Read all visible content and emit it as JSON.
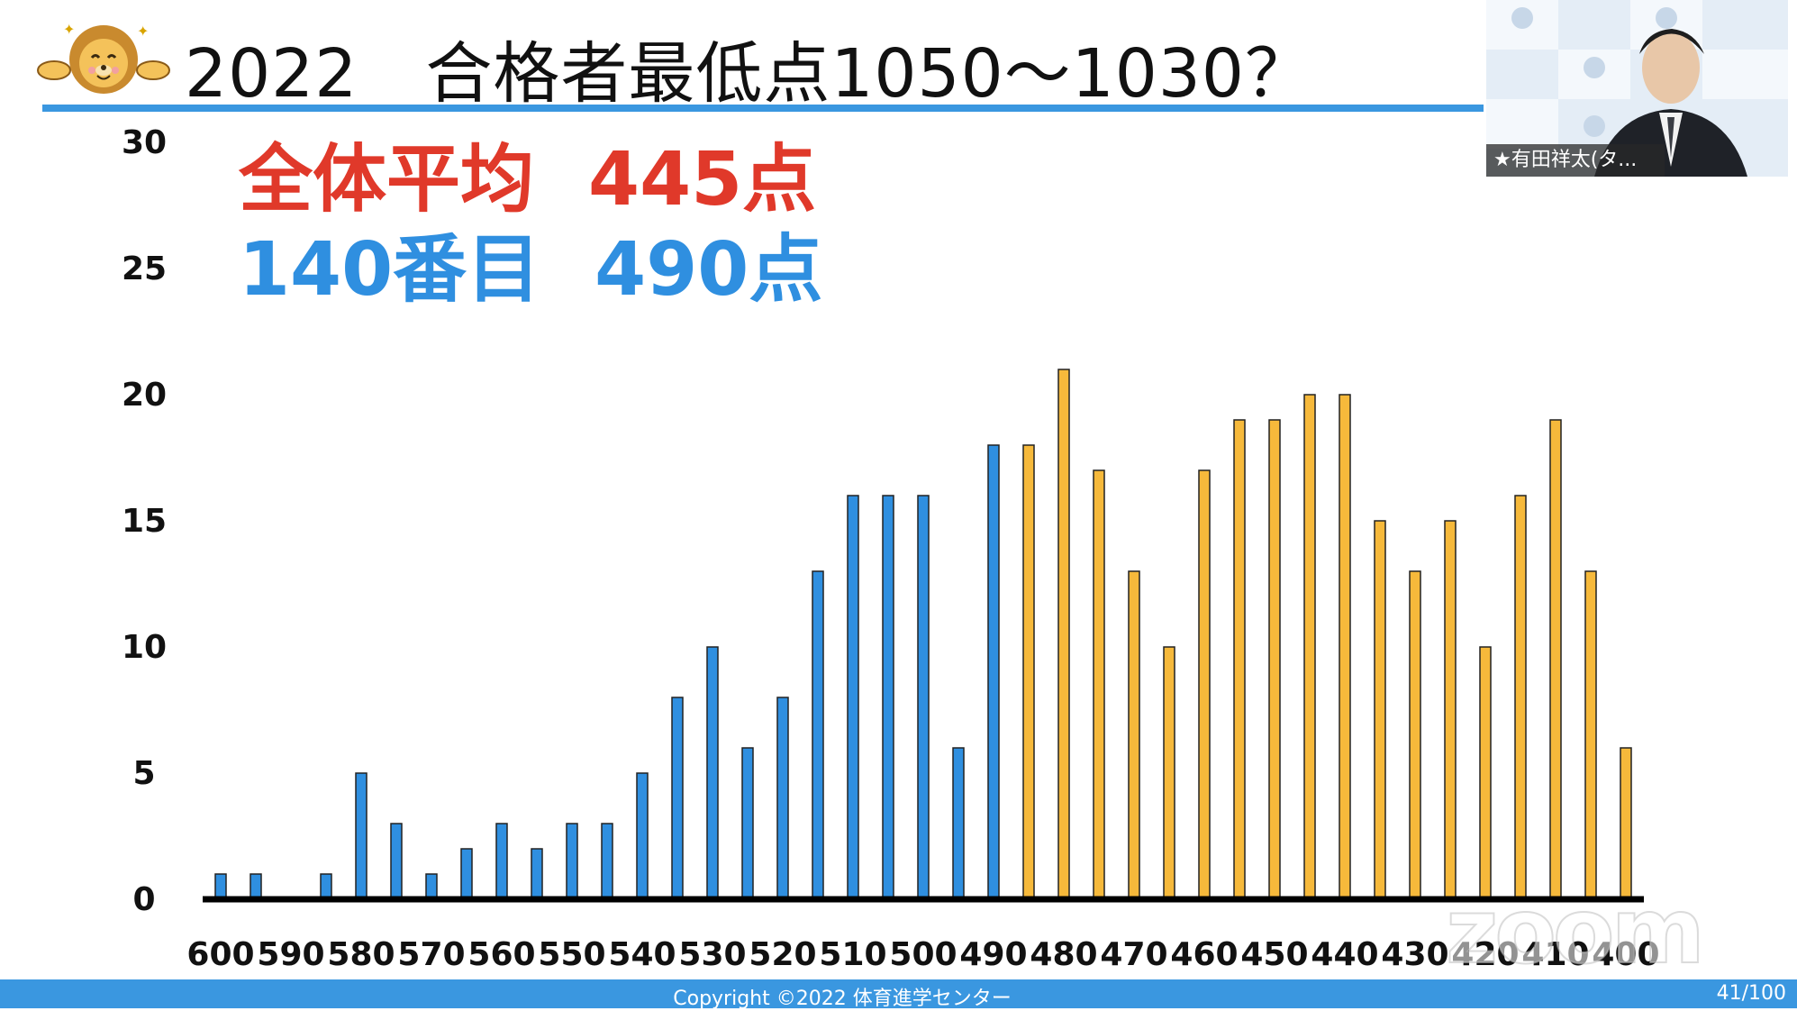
{
  "slide": {
    "title": "2022　合格者最低点1050～1030？",
    "stat_avg_label": "全体平均",
    "stat_avg_value": "445点",
    "stat_rank_label": "140番目",
    "stat_rank_value": "490点",
    "copyright": "Copyright ©2022 体育進学センター",
    "page_number": "41/100"
  },
  "video": {
    "participant_name": "★有田祥太(タ..."
  },
  "watermark": "zoom",
  "colors": {
    "accent_blue": "#3a97e0",
    "bar_blue": "#2f8fe0",
    "bar_orange": "#f6b93b",
    "avg_red": "#e0392a"
  },
  "icons": {
    "mascot": "lion-mascot-icon"
  },
  "chart_data": {
    "type": "bar",
    "categories": [
      "600",
      "595",
      "590",
      "585",
      "580",
      "575",
      "570",
      "565",
      "560",
      "555",
      "550",
      "545",
      "540",
      "535",
      "530",
      "525",
      "520",
      "515",
      "510",
      "505",
      "500",
      "495",
      "490",
      "485",
      "480",
      "475",
      "470",
      "465",
      "460",
      "455",
      "450",
      "445",
      "440",
      "435",
      "430",
      "425",
      "420",
      "415",
      "410",
      "405",
      "400"
    ],
    "tick_labels": [
      "600",
      "590",
      "580",
      "570",
      "560",
      "550",
      "540",
      "530",
      "520",
      "510",
      "500",
      "490",
      "480",
      "470",
      "460",
      "450",
      "440",
      "430",
      "420",
      "410",
      "400"
    ],
    "values": [
      1,
      1,
      0,
      1,
      5,
      3,
      1,
      2,
      3,
      2,
      3,
      3,
      5,
      8,
      10,
      6,
      8,
      13,
      16,
      16,
      16,
      6,
      18,
      18,
      21,
      17,
      13,
      10,
      17,
      19,
      19,
      20,
      20,
      15,
      13,
      15,
      10,
      16,
      19,
      13,
      6
    ],
    "blue_count": 23,
    "yticks": [
      0,
      5,
      10,
      15,
      20,
      25,
      30
    ],
    "ylim": [
      0,
      30
    ],
    "grid": false,
    "title": "",
    "xlabel": "",
    "ylabel": ""
  }
}
